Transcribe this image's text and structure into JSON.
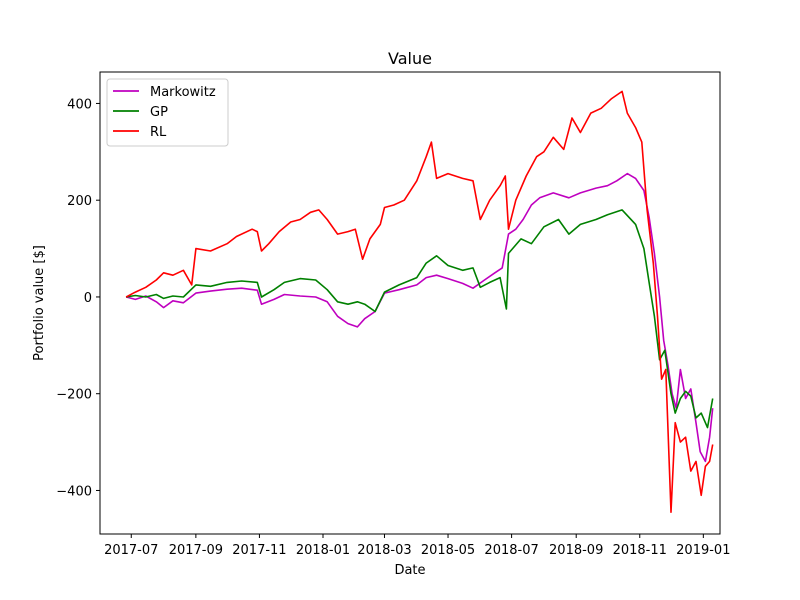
{
  "chart_data": {
    "type": "line",
    "title": "Value",
    "xlabel": "Date",
    "ylabel": "Portfolio value [$]",
    "x_ticks": [
      "2017-07",
      "2017-09",
      "2017-11",
      "2018-01",
      "2018-03",
      "2018-05",
      "2018-07",
      "2018-09",
      "2018-11",
      "2019-01"
    ],
    "y_ticks": [
      "400",
      "200",
      "0",
      "−200",
      "−400"
    ],
    "xlim": [
      "2017-06-01",
      "2019-01-17"
    ],
    "ylim": [
      -490,
      465
    ],
    "grid": false,
    "legend_position": "top-left",
    "series": [
      {
        "name": "Markowitz",
        "color": "#bf00bf",
        "points": [
          [
            "2017-06-26",
            0
          ],
          [
            "2017-07-05",
            -5
          ],
          [
            "2017-07-15",
            2
          ],
          [
            "2017-07-25",
            -10
          ],
          [
            "2017-08-01",
            -22
          ],
          [
            "2017-08-10",
            -8
          ],
          [
            "2017-08-20",
            -12
          ],
          [
            "2017-09-01",
            8
          ],
          [
            "2017-09-15",
            12
          ],
          [
            "2017-10-01",
            16
          ],
          [
            "2017-10-15",
            18
          ],
          [
            "2017-10-30",
            14
          ],
          [
            "2017-11-03",
            -15
          ],
          [
            "2017-11-15",
            -5
          ],
          [
            "2017-11-25",
            5
          ],
          [
            "2017-12-10",
            2
          ],
          [
            "2017-12-25",
            0
          ],
          [
            "2018-01-05",
            -10
          ],
          [
            "2018-01-15",
            -40
          ],
          [
            "2018-01-25",
            -55
          ],
          [
            "2018-02-03",
            -62
          ],
          [
            "2018-02-10",
            -45
          ],
          [
            "2018-02-20",
            -30
          ],
          [
            "2018-03-01",
            8
          ],
          [
            "2018-03-15",
            15
          ],
          [
            "2018-04-01",
            25
          ],
          [
            "2018-04-10",
            40
          ],
          [
            "2018-04-20",
            45
          ],
          [
            "2018-05-01",
            38
          ],
          [
            "2018-05-15",
            28
          ],
          [
            "2018-05-25",
            18
          ],
          [
            "2018-06-05",
            35
          ],
          [
            "2018-06-15",
            50
          ],
          [
            "2018-06-22",
            60
          ],
          [
            "2018-06-28",
            130
          ],
          [
            "2018-07-05",
            140
          ],
          [
            "2018-07-12",
            160
          ],
          [
            "2018-07-20",
            190
          ],
          [
            "2018-07-28",
            205
          ],
          [
            "2018-08-10",
            215
          ],
          [
            "2018-08-25",
            205
          ],
          [
            "2018-09-05",
            215
          ],
          [
            "2018-09-20",
            225
          ],
          [
            "2018-10-01",
            230
          ],
          [
            "2018-10-10",
            240
          ],
          [
            "2018-10-20",
            255
          ],
          [
            "2018-10-28",
            245
          ],
          [
            "2018-11-05",
            220
          ],
          [
            "2018-11-10",
            165
          ],
          [
            "2018-11-15",
            90
          ],
          [
            "2018-11-20",
            0
          ],
          [
            "2018-11-24",
            -90
          ],
          [
            "2018-11-28",
            -140
          ],
          [
            "2018-12-02",
            -200
          ],
          [
            "2018-12-06",
            -230
          ],
          [
            "2018-12-10",
            -150
          ],
          [
            "2018-12-15",
            -210
          ],
          [
            "2018-12-20",
            -190
          ],
          [
            "2018-12-25",
            -260
          ],
          [
            "2018-12-29",
            -320
          ],
          [
            "2019-01-03",
            -340
          ],
          [
            "2019-01-07",
            -290
          ],
          [
            "2019-01-10",
            -230
          ]
        ]
      },
      {
        "name": "GP",
        "color": "#008000",
        "points": [
          [
            "2017-06-26",
            0
          ],
          [
            "2017-07-05",
            3
          ],
          [
            "2017-07-15",
            0
          ],
          [
            "2017-07-25",
            5
          ],
          [
            "2017-08-01",
            -3
          ],
          [
            "2017-08-10",
            2
          ],
          [
            "2017-08-20",
            0
          ],
          [
            "2017-09-01",
            25
          ],
          [
            "2017-09-15",
            22
          ],
          [
            "2017-10-01",
            30
          ],
          [
            "2017-10-15",
            33
          ],
          [
            "2017-10-30",
            30
          ],
          [
            "2017-11-03",
            0
          ],
          [
            "2017-11-15",
            15
          ],
          [
            "2017-11-25",
            30
          ],
          [
            "2017-12-10",
            38
          ],
          [
            "2017-12-25",
            35
          ],
          [
            "2018-01-05",
            15
          ],
          [
            "2018-01-15",
            -10
          ],
          [
            "2018-01-25",
            -15
          ],
          [
            "2018-02-03",
            -10
          ],
          [
            "2018-02-10",
            -15
          ],
          [
            "2018-02-20",
            -30
          ],
          [
            "2018-03-01",
            10
          ],
          [
            "2018-03-15",
            25
          ],
          [
            "2018-04-01",
            40
          ],
          [
            "2018-04-10",
            70
          ],
          [
            "2018-04-20",
            85
          ],
          [
            "2018-05-01",
            65
          ],
          [
            "2018-05-15",
            55
          ],
          [
            "2018-05-25",
            60
          ],
          [
            "2018-06-01",
            20
          ],
          [
            "2018-06-10",
            30
          ],
          [
            "2018-06-20",
            40
          ],
          [
            "2018-06-26",
            -25
          ],
          [
            "2018-06-28",
            90
          ],
          [
            "2018-07-10",
            120
          ],
          [
            "2018-07-20",
            110
          ],
          [
            "2018-08-01",
            145
          ],
          [
            "2018-08-15",
            160
          ],
          [
            "2018-08-25",
            130
          ],
          [
            "2018-09-05",
            150
          ],
          [
            "2018-09-20",
            160
          ],
          [
            "2018-10-01",
            170
          ],
          [
            "2018-10-15",
            180
          ],
          [
            "2018-10-28",
            150
          ],
          [
            "2018-11-05",
            100
          ],
          [
            "2018-11-10",
            30
          ],
          [
            "2018-11-15",
            -40
          ],
          [
            "2018-11-20",
            -130
          ],
          [
            "2018-11-25",
            -110
          ],
          [
            "2018-12-01",
            -200
          ],
          [
            "2018-12-05",
            -240
          ],
          [
            "2018-12-10",
            -210
          ],
          [
            "2018-12-15",
            -195
          ],
          [
            "2018-12-20",
            -205
          ],
          [
            "2018-12-25",
            -250
          ],
          [
            "2018-12-30",
            -240
          ],
          [
            "2019-01-05",
            -270
          ],
          [
            "2019-01-10",
            -210
          ]
        ]
      },
      {
        "name": "RL",
        "color": "#ff0000",
        "points": [
          [
            "2017-06-26",
            0
          ],
          [
            "2017-07-05",
            10
          ],
          [
            "2017-07-15",
            20
          ],
          [
            "2017-07-25",
            35
          ],
          [
            "2017-08-01",
            50
          ],
          [
            "2017-08-10",
            45
          ],
          [
            "2017-08-20",
            55
          ],
          [
            "2017-08-28",
            25
          ],
          [
            "2017-09-01",
            100
          ],
          [
            "2017-09-15",
            95
          ],
          [
            "2017-10-01",
            110
          ],
          [
            "2017-10-10",
            125
          ],
          [
            "2017-10-25",
            140
          ],
          [
            "2017-10-30",
            135
          ],
          [
            "2017-11-03",
            95
          ],
          [
            "2017-11-10",
            110
          ],
          [
            "2017-11-20",
            135
          ],
          [
            "2017-12-01",
            155
          ],
          [
            "2017-12-10",
            160
          ],
          [
            "2017-12-20",
            175
          ],
          [
            "2017-12-28",
            180
          ],
          [
            "2018-01-05",
            160
          ],
          [
            "2018-01-15",
            130
          ],
          [
            "2018-01-25",
            135
          ],
          [
            "2018-02-01",
            140
          ],
          [
            "2018-02-08",
            78
          ],
          [
            "2018-02-15",
            120
          ],
          [
            "2018-02-25",
            150
          ],
          [
            "2018-03-01",
            185
          ],
          [
            "2018-03-10",
            190
          ],
          [
            "2018-03-20",
            200
          ],
          [
            "2018-04-01",
            240
          ],
          [
            "2018-04-10",
            290
          ],
          [
            "2018-04-15",
            320
          ],
          [
            "2018-04-20",
            245
          ],
          [
            "2018-05-01",
            255
          ],
          [
            "2018-05-15",
            245
          ],
          [
            "2018-05-25",
            240
          ],
          [
            "2018-06-01",
            160
          ],
          [
            "2018-06-10",
            200
          ],
          [
            "2018-06-20",
            230
          ],
          [
            "2018-06-25",
            250
          ],
          [
            "2018-06-28",
            140
          ],
          [
            "2018-07-05",
            200
          ],
          [
            "2018-07-15",
            250
          ],
          [
            "2018-07-25",
            290
          ],
          [
            "2018-08-01",
            300
          ],
          [
            "2018-08-10",
            330
          ],
          [
            "2018-08-20",
            305
          ],
          [
            "2018-08-28",
            370
          ],
          [
            "2018-09-05",
            340
          ],
          [
            "2018-09-15",
            380
          ],
          [
            "2018-09-25",
            390
          ],
          [
            "2018-10-05",
            410
          ],
          [
            "2018-10-15",
            425
          ],
          [
            "2018-10-20",
            380
          ],
          [
            "2018-10-28",
            350
          ],
          [
            "2018-11-03",
            320
          ],
          [
            "2018-11-08",
            180
          ],
          [
            "2018-11-14",
            70
          ],
          [
            "2018-11-18",
            -40
          ],
          [
            "2018-11-22",
            -170
          ],
          [
            "2018-11-26",
            -150
          ],
          [
            "2018-12-01",
            -445
          ],
          [
            "2018-12-05",
            -260
          ],
          [
            "2018-12-10",
            -300
          ],
          [
            "2018-12-15",
            -290
          ],
          [
            "2018-12-20",
            -360
          ],
          [
            "2018-12-25",
            -340
          ],
          [
            "2018-12-30",
            -410
          ],
          [
            "2019-01-03",
            -350
          ],
          [
            "2019-01-07",
            -340
          ],
          [
            "2019-01-10",
            -305
          ]
        ]
      }
    ]
  }
}
